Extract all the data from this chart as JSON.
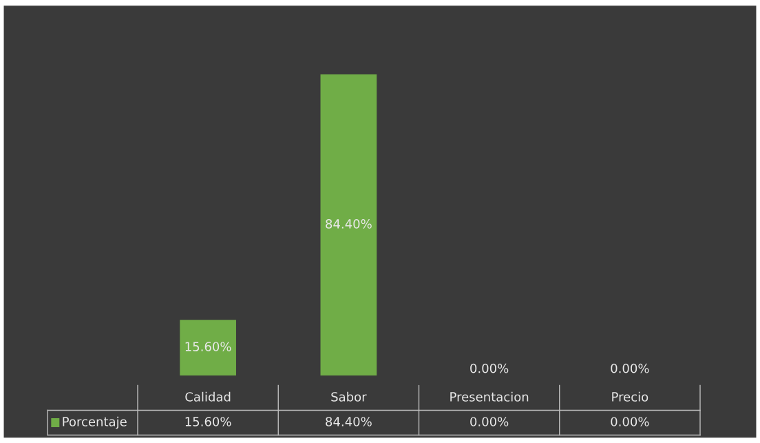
{
  "chart_data": {
    "type": "bar",
    "categories": [
      "Calidad",
      "Sabor",
      "Presentacion",
      "Precio"
    ],
    "series": [
      {
        "name": "Porcentaje",
        "color": "#70ad47",
        "values": [
          15.6,
          84.4,
          0,
          0
        ],
        "value_labels": [
          "15.60%",
          "84.40%",
          "0.00%",
          "0.00%"
        ]
      }
    ]
  }
}
